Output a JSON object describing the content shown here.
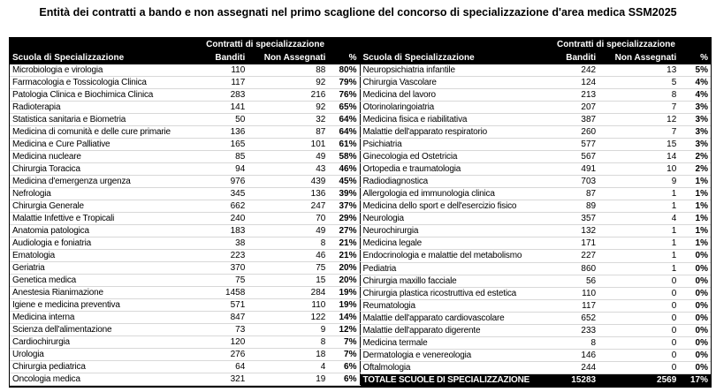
{
  "title": "Entità dei contratti a bando e non assegnati nel primo scaglione del concorso di specializzazione d'area medica SSM2025",
  "colors": {
    "page_bg": "#ffffff",
    "text": "#000000",
    "header_bg": "#000000",
    "header_text": "#ffffff",
    "row_border": "#d8d8d8"
  },
  "chart_data": {
    "type": "table",
    "group_header": "Contratti di specializzazione",
    "columns": [
      "Scuola di Specializzazione",
      "Banditi",
      "Non Assegnati",
      "%"
    ],
    "left_rows": [
      [
        "Microbiologia e virologia",
        110,
        88,
        "80%"
      ],
      [
        "Farmacologia e Tossicologia Clinica",
        117,
        92,
        "79%"
      ],
      [
        "Patologia Clinica e Biochimica Clinica",
        283,
        216,
        "76%"
      ],
      [
        "Radioterapia",
        141,
        92,
        "65%"
      ],
      [
        "Statistica sanitaria e Biometria",
        50,
        32,
        "64%"
      ],
      [
        "Medicina di comunità e delle cure primarie",
        136,
        87,
        "64%"
      ],
      [
        "Medicina e Cure Palliative",
        165,
        101,
        "61%"
      ],
      [
        "Medicina nucleare",
        85,
        49,
        "58%"
      ],
      [
        "Chirurgia Toracica",
        94,
        43,
        "46%"
      ],
      [
        "Medicina d'emergenza urgenza",
        976,
        439,
        "45%"
      ],
      [
        "Nefrologia",
        345,
        136,
        "39%"
      ],
      [
        "Chirurgia Generale",
        662,
        247,
        "37%"
      ],
      [
        "Malattie Infettive e Tropicali",
        240,
        70,
        "29%"
      ],
      [
        "Anatomia patologica",
        183,
        49,
        "27%"
      ],
      [
        "Audiologia e foniatria",
        38,
        8,
        "21%"
      ],
      [
        "Ematologia",
        223,
        46,
        "21%"
      ],
      [
        "Geriatria",
        370,
        75,
        "20%"
      ],
      [
        "Genetica medica",
        75,
        15,
        "20%"
      ],
      [
        "Anestesia Rianimazione",
        1458,
        284,
        "19%"
      ],
      [
        "Igiene e medicina preventiva",
        571,
        110,
        "19%"
      ],
      [
        "Medicina interna",
        847,
        122,
        "14%"
      ],
      [
        "Scienza dell'alimentazione",
        73,
        9,
        "12%"
      ],
      [
        "Cardiochirurgia",
        120,
        8,
        "7%"
      ],
      [
        "Urologia",
        276,
        18,
        "7%"
      ],
      [
        "Chirurgia pediatrica",
        64,
        4,
        "6%"
      ],
      [
        "Oncologia medica",
        321,
        19,
        "6%"
      ]
    ],
    "right_rows": [
      [
        "Neuropsichiatria infantile",
        242,
        13,
        "5%"
      ],
      [
        "Chirurgia Vascolare",
        124,
        5,
        "4%"
      ],
      [
        "Medicina del lavoro",
        213,
        8,
        "4%"
      ],
      [
        "Otorinolaringoiatria",
        207,
        7,
        "3%"
      ],
      [
        "Medicina fisica e riabilitativa",
        387,
        12,
        "3%"
      ],
      [
        "Malattie dell'apparato respiratorio",
        260,
        7,
        "3%"
      ],
      [
        "Psichiatria",
        577,
        15,
        "3%"
      ],
      [
        "Ginecologia ed Ostetricia",
        567,
        14,
        "2%"
      ],
      [
        "Ortopedia e traumatologia",
        491,
        10,
        "2%"
      ],
      [
        "Radiodiagnostica",
        703,
        9,
        "1%"
      ],
      [
        "Allergologia ed immunologia clinica",
        87,
        1,
        "1%"
      ],
      [
        "Medicina dello sport e dell'esercizio fisico",
        89,
        1,
        "1%"
      ],
      [
        "Neurologia",
        357,
        4,
        "1%"
      ],
      [
        "Neurochirurgia",
        132,
        1,
        "1%"
      ],
      [
        "Medicina legale",
        171,
        1,
        "1%"
      ],
      [
        "Endocrinologia e malattie del metabolismo",
        227,
        1,
        "0%"
      ],
      [
        "Pediatria",
        860,
        1,
        "0%"
      ],
      [
        "Chirurgia maxillo facciale",
        56,
        0,
        "0%"
      ],
      [
        "Chirurgia plastica ricostruttiva ed estetica",
        110,
        0,
        "0%"
      ],
      [
        "Reumatologia",
        117,
        0,
        "0%"
      ],
      [
        "Malattie dell'apparato cardiovascolare",
        652,
        0,
        "0%"
      ],
      [
        "Malattie dell'apparato digerente",
        233,
        0,
        "0%"
      ],
      [
        "Medicina termale",
        8,
        0,
        "0%"
      ],
      [
        "Dermatologia e venereologia",
        146,
        0,
        "0%"
      ],
      [
        "Oftalmologia",
        244,
        0,
        "0%"
      ]
    ],
    "total_row": [
      "TOTALE SCUOLE DI SPECIALIZZAZIONE",
      15283,
      2569,
      "17%"
    ]
  }
}
